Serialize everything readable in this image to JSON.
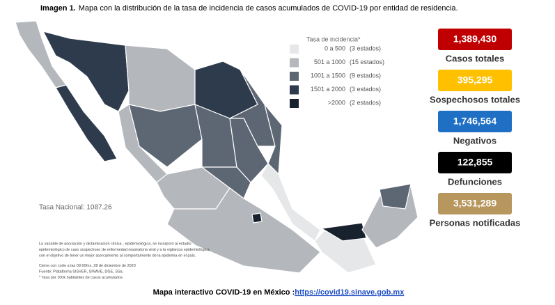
{
  "header": {
    "bold": "Imagen 1.",
    "text": "Mapa con la distribución de la tasa de incidencia de casos acumulados de COVID-19 por entidad de residencia."
  },
  "legend": {
    "title": "Tasa de incidencia*",
    "items": [
      {
        "range": "0 a 500",
        "count": "(3 estados)",
        "color": "#e6e7e9"
      },
      {
        "range": "501 a 1000",
        "count": "(15 estados)",
        "color": "#b4b7bc"
      },
      {
        "range": "1001 a 1500",
        "count": "(9 estados)",
        "color": "#5d6673"
      },
      {
        "range": "1501 a 2000",
        "count": "(3 estados)",
        "color": "#2d3b4c"
      },
      {
        "range": ">2000",
        "count": "(2 estados)",
        "color": "#18222f"
      }
    ]
  },
  "national_rate": "Tasa Nacional: 1087.26",
  "stats": [
    {
      "value": "1,389,430",
      "label": "Casos totales",
      "color": "#c00000"
    },
    {
      "value": "395,295",
      "label": "Sospechosos totales",
      "color": "#ffc000"
    },
    {
      "value": "1,746,564",
      "label": "Negativos",
      "color": "#1f6fc5"
    },
    {
      "value": "122,855",
      "label": "Defunciones",
      "color": "#000000"
    },
    {
      "value": "3,531,289",
      "label": "Personas notificadas",
      "color": "#b8975f"
    }
  ],
  "notes": [
    "La variable de asociación y dictaminación clínica - epidemiológica, se incorporó al estudio",
    "epidemiológico de caso sospechoso de enfermedad respiratoria viral y a la vigilancia epidemiológica,",
    "con el objetivo de tener un mejor acercamiento al comportamiento de la epidemia en el país.",
    "Cierre con corte a las 09:00hrs, 28 de diciembre de 2020",
    "Fuente: Plataforma SISVER, SINAVE, DGE, SSa.",
    "* Tasa por 100k habitantes de casos acumulados."
  ],
  "footer": {
    "text": "Mapa interactivo COVID-19 en México :",
    "link": "https://covid19.sinave.gob.mx"
  }
}
